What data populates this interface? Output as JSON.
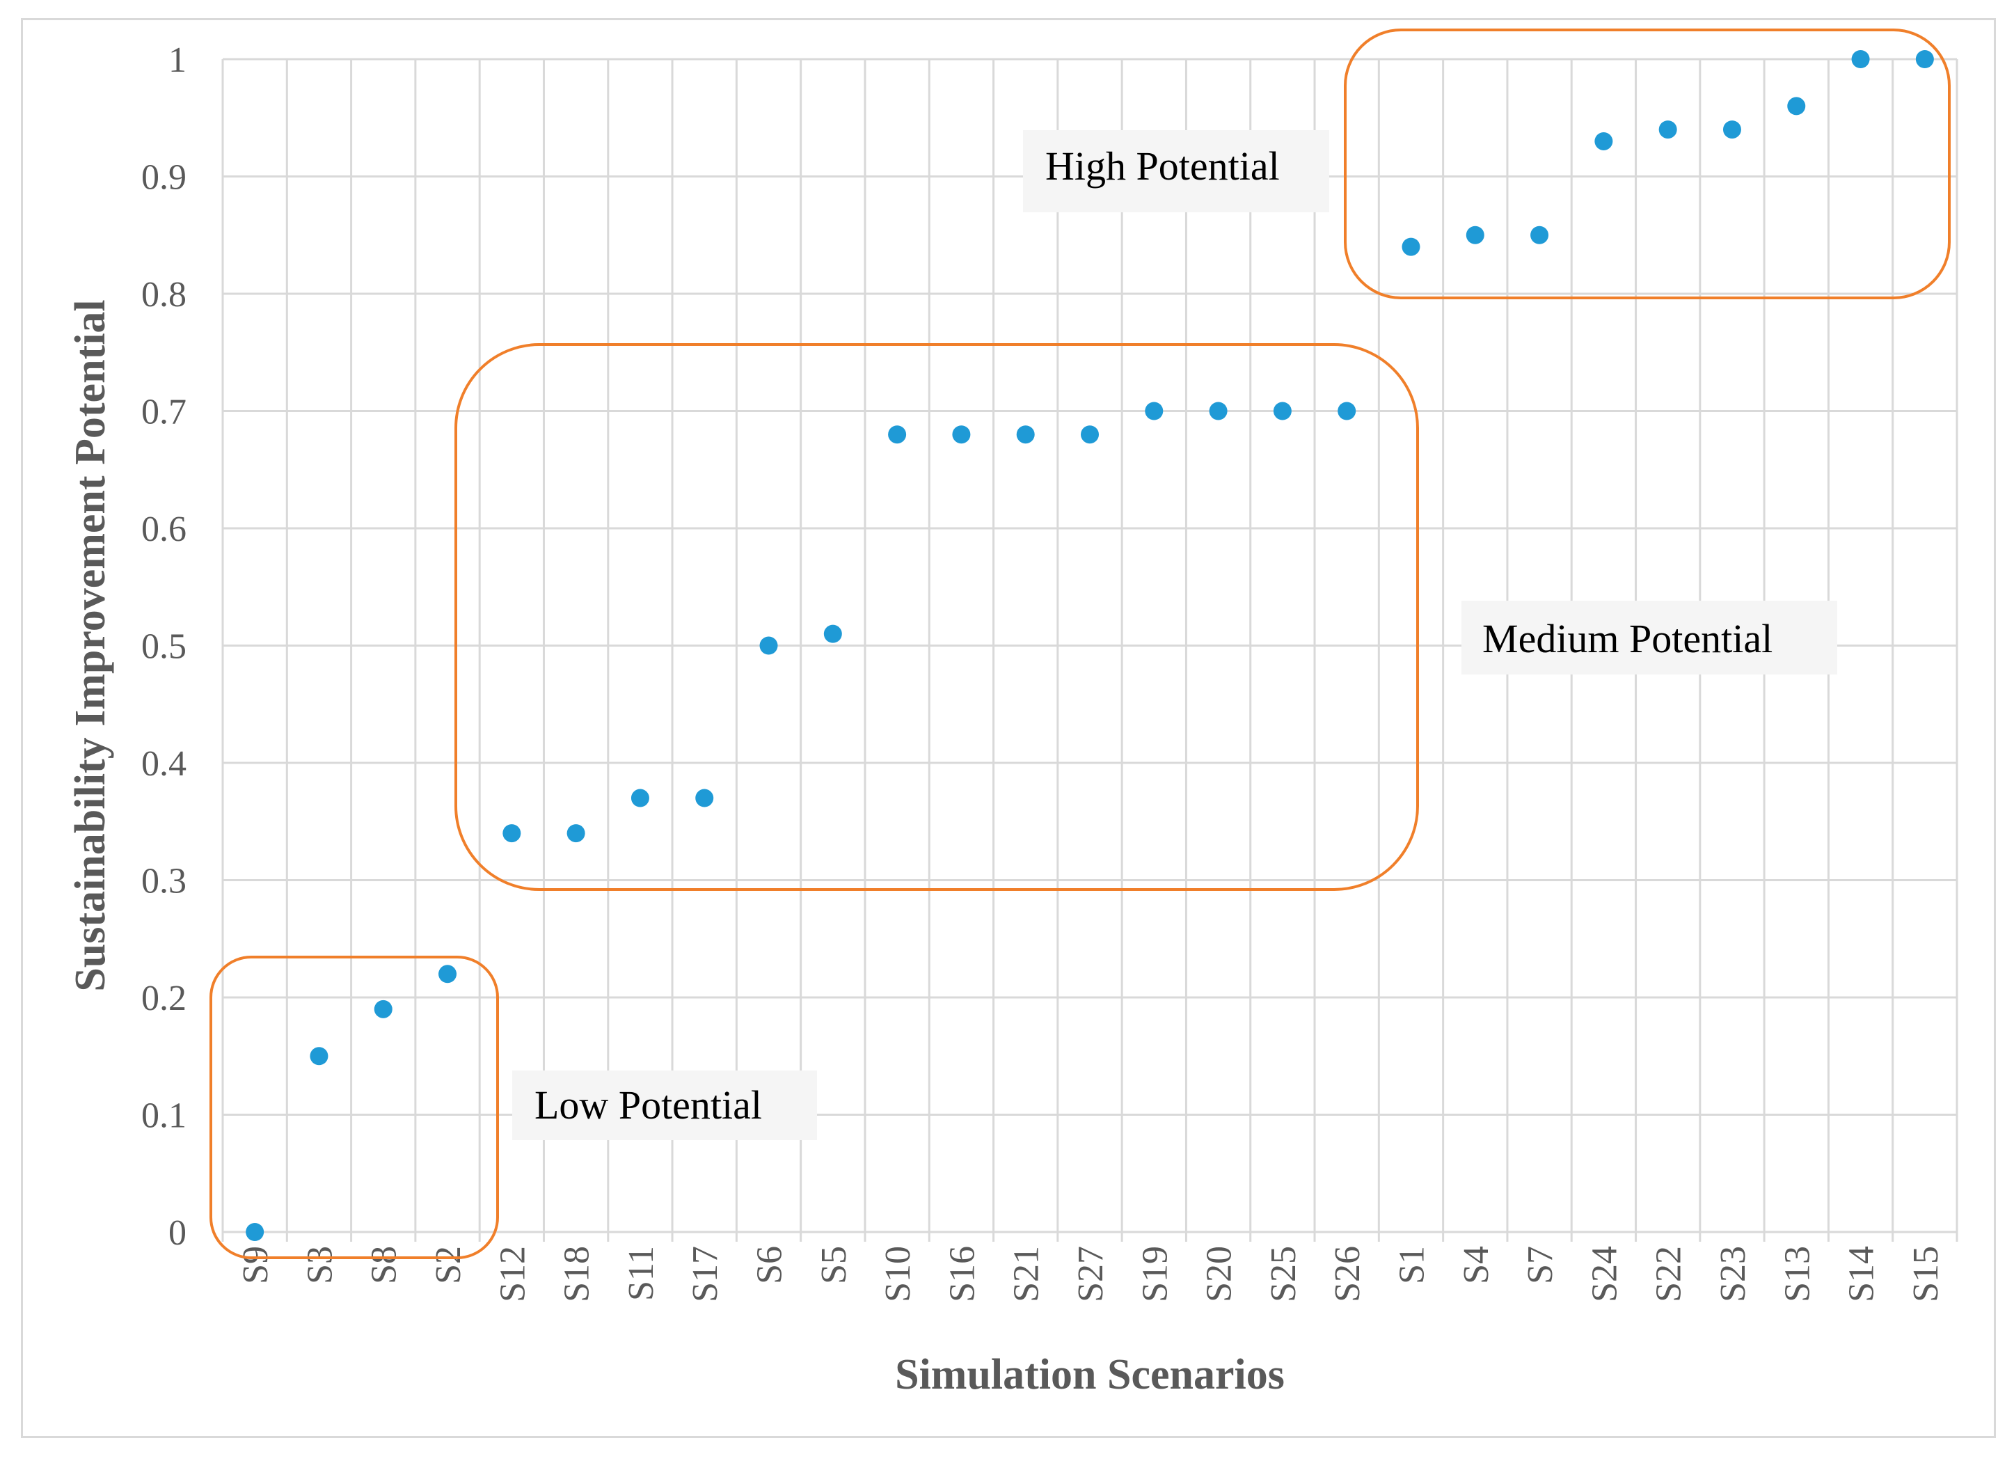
{
  "chart_data": {
    "type": "scatter",
    "title": "",
    "xlabel": "Simulation Scenarios",
    "ylabel": "Sustainability Improvement Potential",
    "ylim": [
      0,
      1
    ],
    "yticks": [
      "0",
      "0.1",
      "0.2",
      "0.3",
      "0.4",
      "0.5",
      "0.6",
      "0.7",
      "0.8",
      "0.9",
      "1"
    ],
    "grid": true,
    "point_color": "#1f9ad6",
    "annotation_color": "#f07f2a",
    "categories": [
      "S9",
      "S3",
      "S8",
      "S2",
      "S12",
      "S18",
      "S11",
      "S17",
      "S6",
      "S5",
      "S10",
      "S16",
      "S21",
      "S27",
      "S19",
      "S20",
      "S25",
      "S26",
      "S1",
      "S4",
      "S7",
      "S24",
      "S22",
      "S23",
      "S13",
      "S14",
      "S15"
    ],
    "series": [
      {
        "name": "Sustainability Improvement Potential",
        "values": [
          0,
          0.15,
          0.19,
          0.22,
          0.34,
          0.34,
          0.37,
          0.37,
          0.5,
          0.51,
          0.68,
          0.68,
          0.68,
          0.68,
          0.7,
          0.7,
          0.7,
          0.7,
          0.84,
          0.85,
          0.85,
          0.93,
          0.94,
          0.94,
          0.96,
          1,
          1
        ]
      }
    ],
    "annotations": [
      {
        "label": "Low Potential",
        "from": "S9",
        "to": "S2",
        "y_range": [
          0,
          0.22
        ]
      },
      {
        "label": "Medium Potential",
        "from": "S12",
        "to": "S26",
        "y_range": [
          0.34,
          0.7
        ]
      },
      {
        "label": "High Potential",
        "from": "S1",
        "to": "S15",
        "y_range": [
          0.84,
          1
        ]
      }
    ]
  }
}
